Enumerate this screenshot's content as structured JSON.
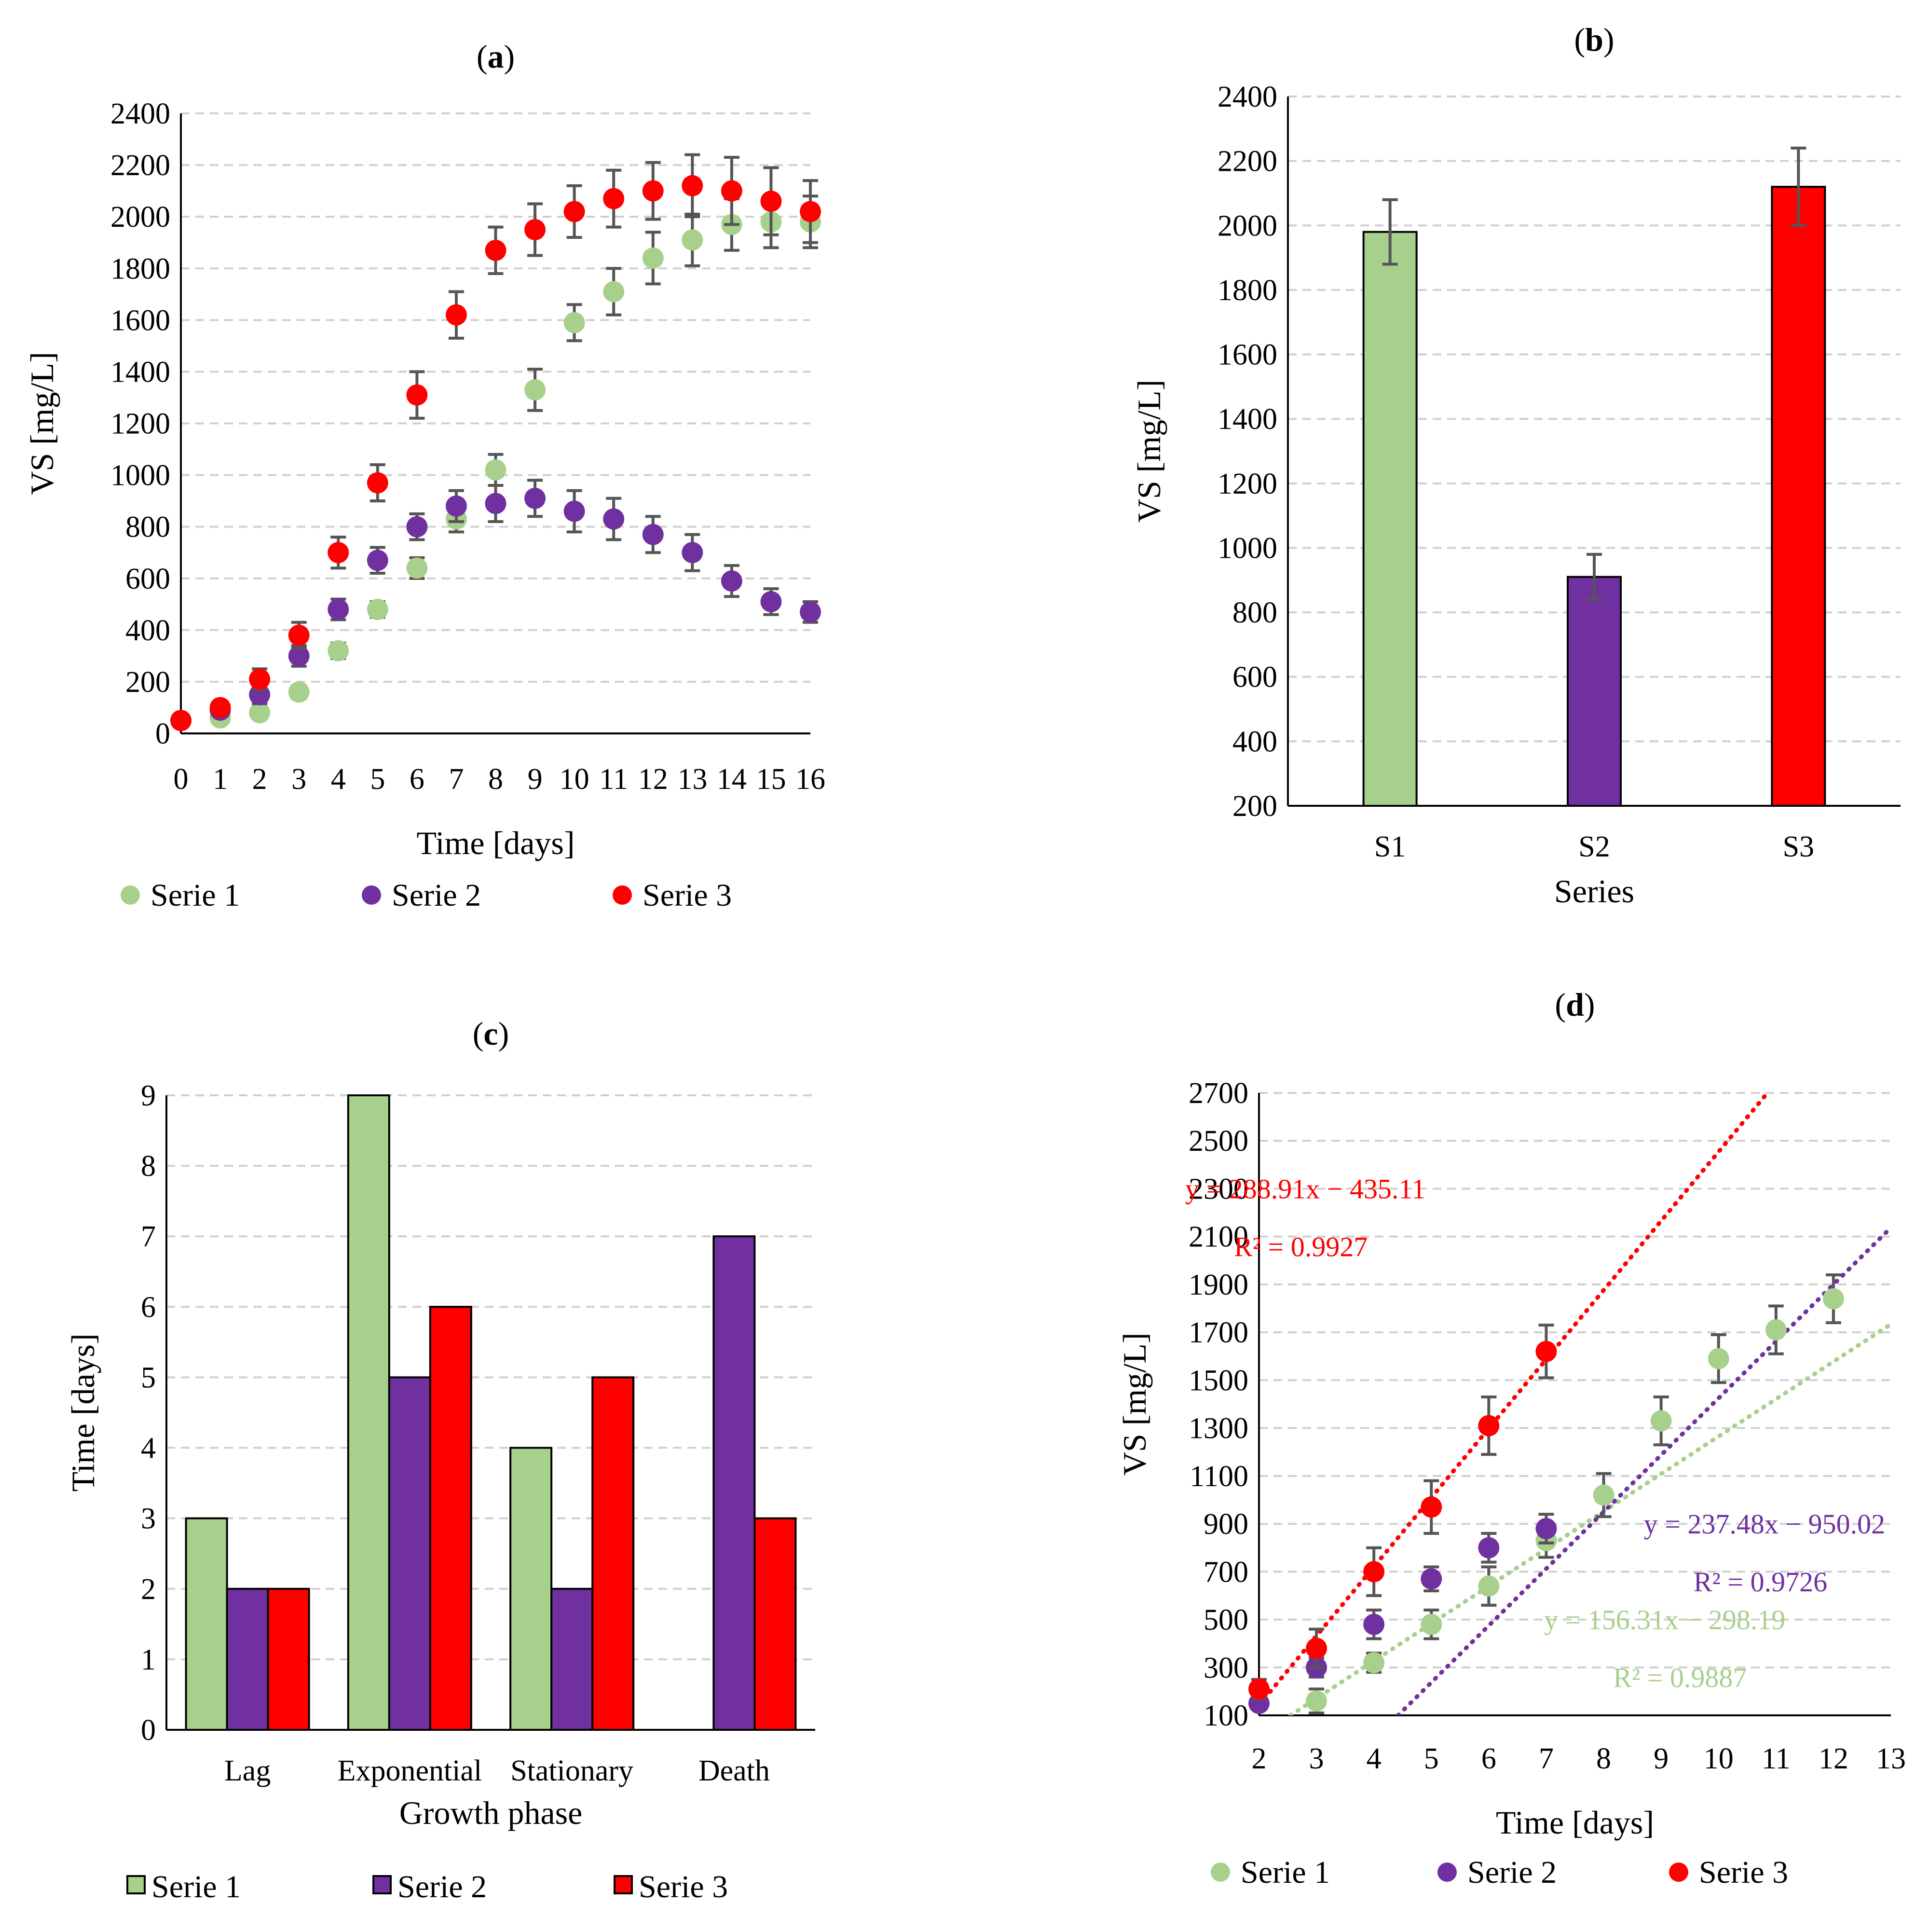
{
  "chart_data": [
    {
      "id": "a",
      "panel_label": "a",
      "type": "scatter",
      "xlabel": "Time [days]",
      "ylabel": "VS [mg/L]",
      "xlim": [
        0,
        16
      ],
      "ylim": [
        0,
        2400
      ],
      "x_ticks": [
        0,
        1,
        2,
        3,
        4,
        5,
        6,
        7,
        8,
        9,
        10,
        11,
        12,
        13,
        14,
        15,
        16
      ],
      "y_ticks": [
        0,
        200,
        400,
        600,
        800,
        1000,
        1200,
        1400,
        1600,
        1800,
        2000,
        2200,
        2400
      ],
      "grid": "horizontal dashed",
      "legend_position": "bottom",
      "series": [
        {
          "name": "Serie 1",
          "color": "#a8d08d",
          "x": [
            0,
            1,
            2,
            3,
            4,
            5,
            6,
            7,
            8,
            9,
            10,
            11,
            12,
            13,
            14,
            15,
            16
          ],
          "y": [
            50,
            60,
            80,
            160,
            320,
            480,
            640,
            830,
            1020,
            1330,
            1590,
            1710,
            1840,
            1910,
            1970,
            1980,
            1980
          ],
          "err": [
            10,
            15,
            20,
            25,
            30,
            30,
            40,
            50,
            60,
            80,
            70,
            90,
            100,
            100,
            100,
            100,
            100
          ]
        },
        {
          "name": "Serie 2",
          "color": "#7030a0",
          "x": [
            0,
            1,
            2,
            3,
            4,
            5,
            6,
            7,
            8,
            9,
            10,
            11,
            12,
            13,
            14,
            15,
            16
          ],
          "y": [
            50,
            90,
            150,
            300,
            480,
            670,
            800,
            880,
            890,
            910,
            860,
            830,
            770,
            700,
            590,
            510,
            470
          ],
          "err": [
            10,
            20,
            35,
            40,
            40,
            50,
            50,
            60,
            70,
            70,
            80,
            80,
            70,
            70,
            60,
            50,
            40
          ]
        },
        {
          "name": "Serie 3",
          "color": "#ff0000",
          "x": [
            0,
            1,
            2,
            3,
            4,
            5,
            6,
            7,
            8,
            9,
            10,
            11,
            12,
            13,
            14,
            15,
            16
          ],
          "y": [
            50,
            100,
            210,
            380,
            700,
            970,
            1310,
            1620,
            1870,
            1950,
            2020,
            2070,
            2100,
            2120,
            2100,
            2060,
            2020
          ],
          "err": [
            10,
            20,
            40,
            50,
            60,
            70,
            90,
            90,
            90,
            100,
            100,
            110,
            110,
            120,
            130,
            130,
            120
          ]
        }
      ]
    },
    {
      "id": "b",
      "panel_label": "b",
      "type": "bar",
      "xlabel": "Series",
      "ylabel": "VS [mg/L]",
      "ylim": [
        200,
        2400
      ],
      "y_ticks": [
        200,
        400,
        600,
        800,
        1000,
        1200,
        1400,
        1600,
        1800,
        2000,
        2200,
        2400
      ],
      "grid": "horizontal dashed",
      "categories": [
        "S1",
        "S2",
        "S3"
      ],
      "values": [
        1980,
        910,
        2120
      ],
      "errors": [
        100,
        70,
        120
      ],
      "colors": [
        "#a8d08d",
        "#7030a0",
        "#ff0000"
      ]
    },
    {
      "id": "c",
      "panel_label": "c",
      "type": "bar",
      "xlabel": "Growth phase",
      "ylabel": "Time [days]",
      "ylim": [
        0,
        9
      ],
      "y_ticks": [
        0,
        1,
        2,
        3,
        4,
        5,
        6,
        7,
        8,
        9
      ],
      "grid": "horizontal dashed",
      "legend_position": "bottom",
      "categories": [
        "Lag",
        "Exponential",
        "Stationary",
        "Death"
      ],
      "series": [
        {
          "name": "Serie 1",
          "color": "#a8d08d",
          "values": [
            3,
            9,
            4,
            0
          ]
        },
        {
          "name": "Serie 2",
          "color": "#7030a0",
          "values": [
            2,
            5,
            2,
            7
          ]
        },
        {
          "name": "Serie 3",
          "color": "#ff0000",
          "values": [
            2,
            6,
            5,
            3
          ]
        }
      ]
    },
    {
      "id": "d",
      "panel_label": "d",
      "type": "scatter",
      "xlabel": "Time [days]",
      "ylabel": "VS [mg/L]",
      "xlim": [
        2,
        13
      ],
      "ylim": [
        100,
        2700
      ],
      "x_ticks": [
        2,
        3,
        4,
        5,
        6,
        7,
        8,
        9,
        10,
        11,
        12,
        13
      ],
      "y_ticks": [
        100,
        300,
        500,
        700,
        900,
        1100,
        1300,
        1500,
        1700,
        1900,
        2100,
        2300,
        2500,
        2700
      ],
      "grid": "horizontal dashed",
      "legend_position": "bottom",
      "series": [
        {
          "name": "Serie 1",
          "color": "#a8d08d",
          "x": [
            3,
            4,
            5,
            6,
            7,
            8,
            9,
            10,
            11,
            12
          ],
          "y": [
            160,
            320,
            480,
            640,
            830,
            1020,
            1330,
            1590,
            1710,
            1840
          ],
          "err": [
            50,
            40,
            60,
            80,
            70,
            90,
            100,
            100,
            100,
            100
          ],
          "trend": {
            "slope": 156.31,
            "intercept": -298.19,
            "x_start": 2,
            "x_end": 13
          },
          "equation": "y = 156.31x − 298.19",
          "r2": "R² = 0.9887"
        },
        {
          "name": "Serie 2",
          "color": "#7030a0",
          "x": [
            2,
            3,
            4,
            5,
            6,
            7
          ],
          "y": [
            150,
            300,
            480,
            670,
            800,
            880
          ],
          "err": [
            20,
            40,
            60,
            50,
            60,
            60
          ],
          "trend": {
            "slope": 237.48,
            "intercept": -950.02,
            "x_start": 2,
            "x_end": 13
          },
          "equation": "y = 237.48x − 950.02",
          "r2": "R² = 0.9726"
        },
        {
          "name": "Serie 3",
          "color": "#ff0000",
          "x": [
            2,
            3,
            4,
            5,
            6,
            7
          ],
          "y": [
            210,
            380,
            700,
            970,
            1310,
            1620
          ],
          "err": [
            40,
            80,
            100,
            110,
            120,
            110
          ],
          "trend": {
            "slope": 288.91,
            "intercept": -435.11,
            "x_start": 2,
            "x_end": 13
          },
          "equation": "y = 288.91x − 435.11",
          "r2": "R² = 0.9927"
        }
      ]
    }
  ]
}
